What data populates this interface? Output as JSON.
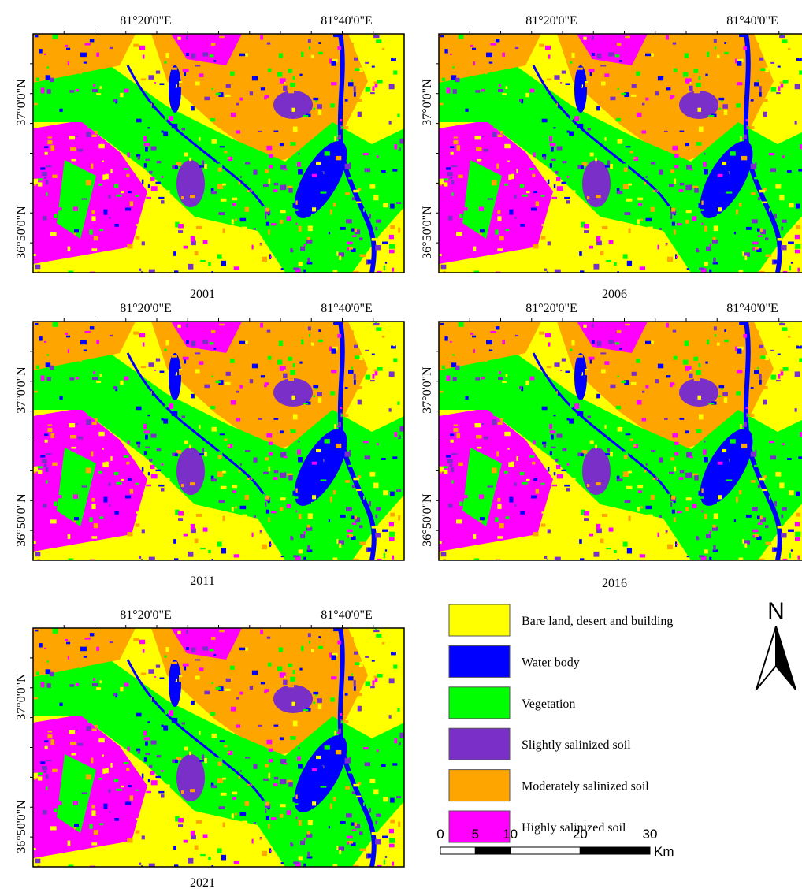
{
  "panels": [
    {
      "year": "2001",
      "x_labels": [
        "81°20'0\"E",
        "81°40'0\"E"
      ],
      "y_labels": [
        "37°0'0\"N",
        "36°50'0\"N"
      ]
    },
    {
      "year": "2006",
      "x_labels": [
        "81°20'0\"E",
        "81°40'0\"E"
      ],
      "y_labels": [
        "37°0'0\"N",
        "36°50'0\"N"
      ]
    },
    {
      "year": "2011",
      "x_labels": [
        "81°20'0\"E",
        "81°40'0\"E"
      ],
      "y_labels": [
        "37°0'0\"N",
        "36°50'0\"N"
      ]
    },
    {
      "year": "2016",
      "x_labels": [
        "81°20'0\"E",
        "81°40'0\"E"
      ],
      "y_labels": [
        "37°0'0\"N",
        "36°50'0\"N"
      ]
    },
    {
      "year": "2021",
      "x_labels": [
        "81°20'0\"E",
        "81°40'0\"E"
      ],
      "y_labels": [
        "37°0'0\"N",
        "36°50'0\"N"
      ]
    }
  ],
  "legend": [
    {
      "label": "Bare land, desert and building",
      "color": "#ffff00"
    },
    {
      "label": "Water body",
      "color": "#0000ff"
    },
    {
      "label": "Vegetation",
      "color": "#00ff00"
    },
    {
      "label": "Slightly salinized soil",
      "color": "#7b2fc9"
    },
    {
      "label": "Moderately salinized soil",
      "color": "#ffa500"
    },
    {
      "label": "Highly salinized soil",
      "color": "#ff00ff"
    }
  ],
  "north": "N",
  "scale": {
    "ticks": [
      0,
      5,
      10,
      20,
      30
    ],
    "unit": "Km"
  }
}
